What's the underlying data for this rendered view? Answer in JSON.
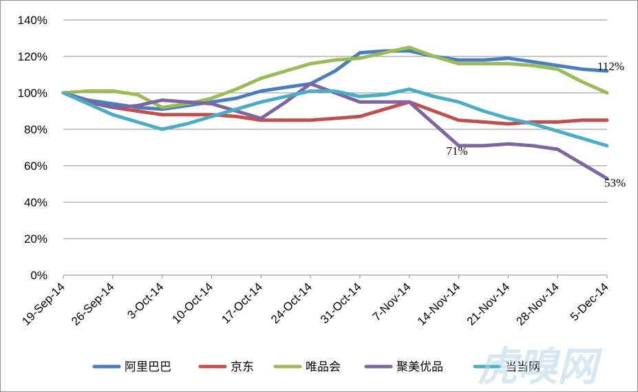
{
  "watermark": "虎嗅网",
  "chart_data": {
    "type": "line",
    "title": "",
    "xlabel": "",
    "ylabel": "",
    "ylim": [
      0,
      140
    ],
    "y_ticks": [
      "0%",
      "20%",
      "40%",
      "60%",
      "80%",
      "100%",
      "120%",
      "140%"
    ],
    "y_tick_values": [
      0,
      20,
      40,
      60,
      80,
      100,
      120,
      140
    ],
    "grid": "horizontal",
    "legend_position": "bottom",
    "x_categories": [
      "19-Sep-14",
      "26-Sep-14",
      "3-Oct-14",
      "10-Oct-14",
      "17-Oct-14",
      "24-Oct-14",
      "31-Oct-14",
      "7-Nov-14",
      "14-Nov-14",
      "21-Nov-14",
      "28-Nov-14",
      "5-Dec-14"
    ],
    "x_points": [
      "19-Sep-14",
      "22-Sep-14",
      "26-Sep-14",
      "29-Sep-14",
      "3-Oct-14",
      "6-Oct-14",
      "10-Oct-14",
      "13-Oct-14",
      "17-Oct-14",
      "20-Oct-14",
      "24-Oct-14",
      "27-Oct-14",
      "31-Oct-14",
      "3-Nov-14",
      "7-Nov-14",
      "10-Nov-14",
      "14-Nov-14",
      "17-Nov-14",
      "21-Nov-14",
      "24-Nov-14",
      "28-Nov-14",
      "1-Dec-14",
      "5-Dec-14"
    ],
    "series": [
      {
        "name": "阿里巴巴",
        "color": "#4a7dbd",
        "values": [
          100,
          96,
          94,
          92,
          91,
          93,
          95,
          97,
          101,
          103,
          105,
          112,
          122,
          123,
          123,
          120,
          118,
          118,
          119,
          117,
          115,
          113,
          112
        ]
      },
      {
        "name": "京东",
        "color": "#c0504d",
        "values": [
          100,
          95,
          92,
          90,
          88,
          88,
          88,
          87,
          85,
          85,
          85,
          86,
          87,
          91,
          95,
          90,
          85,
          84,
          83,
          84,
          84,
          85,
          85
        ]
      },
      {
        "name": "唯品会",
        "color": "#9bbb59",
        "values": [
          100,
          101,
          101,
          99,
          92,
          94,
          97,
          102,
          108,
          112,
          116,
          118,
          119,
          122,
          125,
          120,
          116,
          116,
          116,
          115,
          113,
          106,
          100
        ]
      },
      {
        "name": "聚美优品",
        "color": "#8064a2",
        "values": [
          100,
          95,
          92,
          93,
          96,
          95,
          94,
          90,
          86,
          95,
          105,
          100,
          95,
          95,
          95,
          83,
          71,
          71,
          72,
          71,
          69,
          61,
          53
        ]
      },
      {
        "name": "当当网",
        "color": "#4bacc6",
        "values": [
          100,
          94,
          88,
          84,
          80,
          83,
          87,
          91,
          95,
          98,
          101,
          101,
          98,
          99,
          102,
          98,
          95,
          90,
          86,
          83,
          79,
          75,
          71
        ]
      }
    ],
    "annotations": [
      {
        "text": "112%",
        "x": "5-Dec-14",
        "y": 112,
        "series": "阿里巴巴"
      },
      {
        "text": "71%",
        "x": "14-Nov-14",
        "y": 71,
        "series": "聚美优品"
      },
      {
        "text": "53%",
        "x": "5-Dec-14",
        "y": 53,
        "series": "聚美优品"
      }
    ]
  }
}
